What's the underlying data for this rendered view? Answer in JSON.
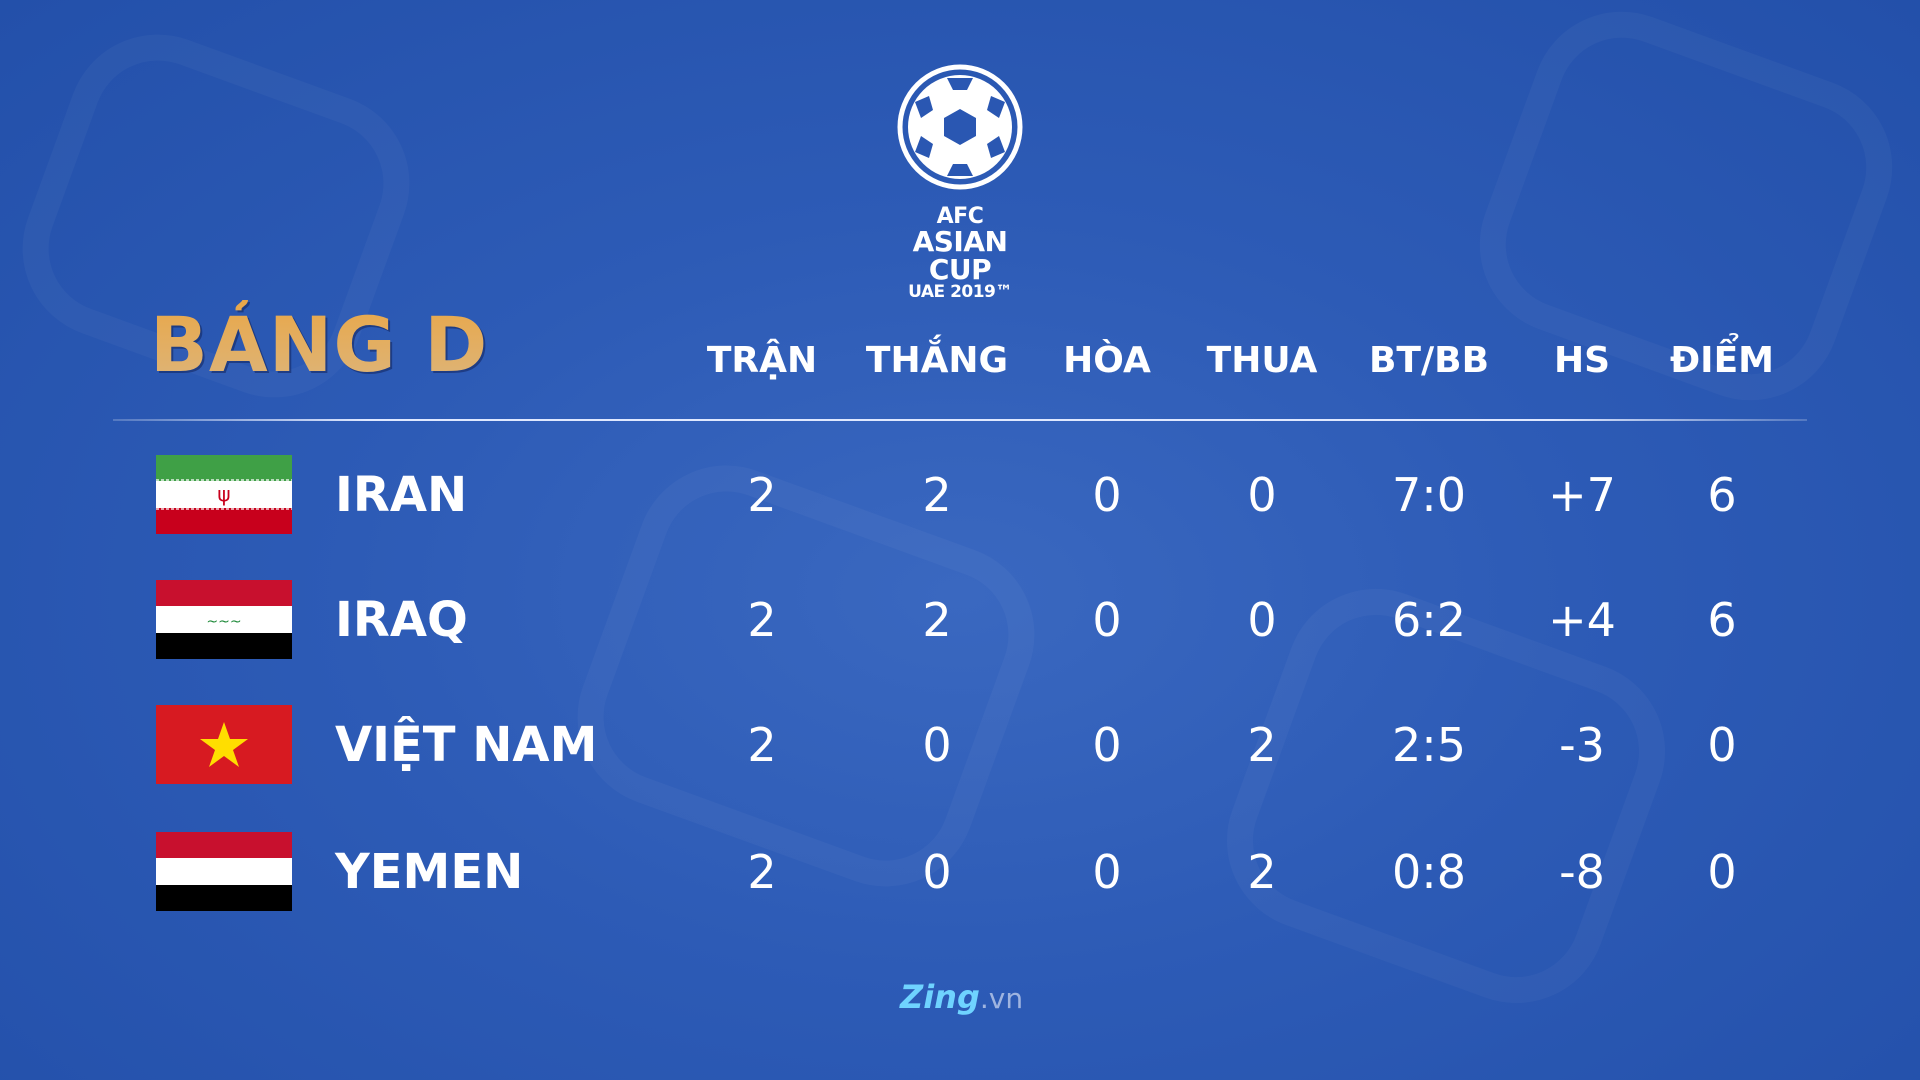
{
  "logo": {
    "line1": "AFC",
    "line2": "ASIAN CUP",
    "line3": "UAE 2019™"
  },
  "title": "BẢNG D",
  "columns": [
    "TRẬN",
    "THẮNG",
    "HÒA",
    "THUA",
    "BT/BB",
    "HS",
    "ĐIỂM"
  ],
  "rows": [
    {
      "team": "IRAN",
      "flag": "iran-flag",
      "values": [
        "2",
        "2",
        "0",
        "0",
        "7:0",
        "+7",
        "6"
      ]
    },
    {
      "team": "IRAQ",
      "flag": "iraq-flag",
      "values": [
        "2",
        "2",
        "0",
        "0",
        "6:2",
        "+4",
        "6"
      ]
    },
    {
      "team": "VIỆT NAM",
      "flag": "vietnam-flag",
      "values": [
        "2",
        "0",
        "0",
        "2",
        "2:5",
        "-3",
        "0"
      ]
    },
    {
      "team": "YEMEN",
      "flag": "yemen-flag",
      "values": [
        "2",
        "0",
        "0",
        "2",
        "0:8",
        "-8",
        "0"
      ]
    }
  ],
  "brand": {
    "name": "Zing",
    "suffix": ".vn"
  },
  "colors": {
    "background": "#2d5bb6",
    "title": "#e3ad5e",
    "text": "#ffffff"
  }
}
